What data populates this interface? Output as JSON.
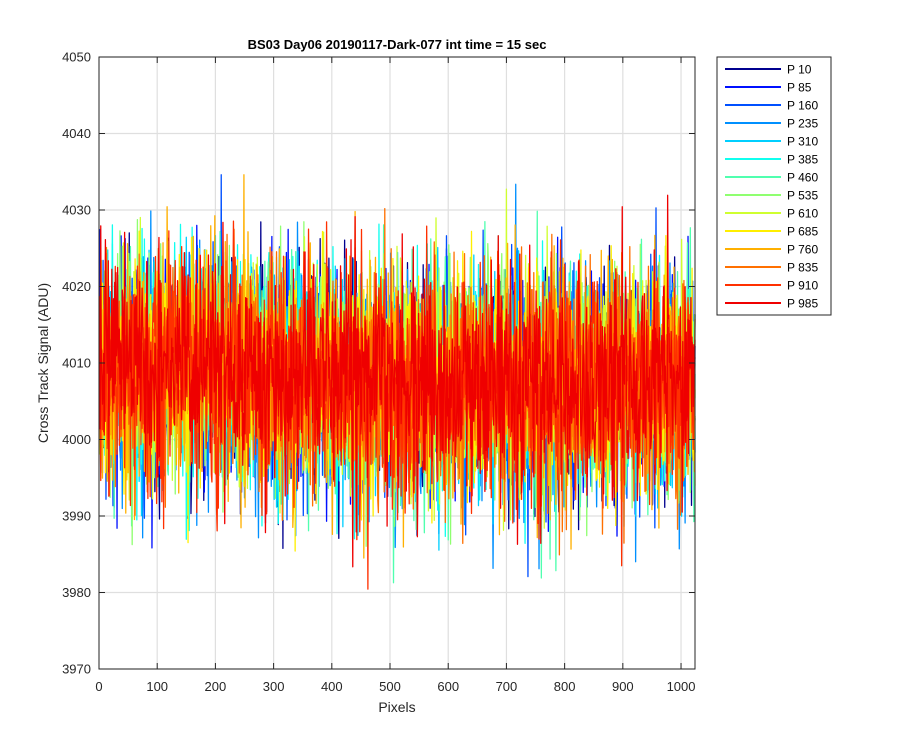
{
  "chart_data": {
    "type": "line",
    "title": "BS03 Day06 20190117-Dark-077 int time = 15 sec",
    "xlabel": "Pixels",
    "ylabel": "Cross Track Signal (ADU)",
    "xlim": [
      0,
      1024
    ],
    "ylim": [
      3970,
      4050
    ],
    "xticks": [
      0,
      100,
      200,
      300,
      400,
      500,
      600,
      700,
      800,
      900,
      1000
    ],
    "yticks": [
      3970,
      3980,
      3990,
      4000,
      4010,
      4020,
      4030,
      4040,
      4050
    ],
    "grid": true,
    "legend_position": "outside-right",
    "x_start": 1,
    "x_end": 1024,
    "series_mean": 4007,
    "series": [
      {
        "name": "P 10",
        "color": "#00008f"
      },
      {
        "name": "P 85",
        "color": "#0010ff"
      },
      {
        "name": "P 160",
        "color": "#0050ff"
      },
      {
        "name": "P 235",
        "color": "#0090ff"
      },
      {
        "name": "P 310",
        "color": "#00cfff"
      },
      {
        "name": "P 385",
        "color": "#10ffef"
      },
      {
        "name": "P 460",
        "color": "#50ffaf"
      },
      {
        "name": "P 535",
        "color": "#8fff70"
      },
      {
        "name": "P 610",
        "color": "#cfff30"
      },
      {
        "name": "P 685",
        "color": "#ffef00"
      },
      {
        "name": "P 760",
        "color": "#ffb000"
      },
      {
        "name": "P 835",
        "color": "#ff7000"
      },
      {
        "name": "P 910",
        "color": "#ff3000"
      },
      {
        "name": "P 985",
        "color": "#ef0000"
      }
    ]
  }
}
